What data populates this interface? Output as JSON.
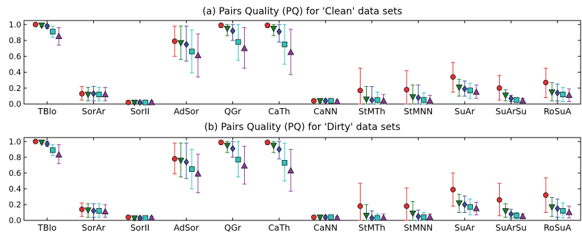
{
  "chart_data": [
    {
      "type": "scatter",
      "title": "(a)  Pairs Quality (PQ) for 'Clean' data sets",
      "xlabel": "",
      "ylabel": "",
      "ylim": [
        0,
        1.05
      ],
      "yticks": [
        "0.0",
        "0.2",
        "0.4",
        "0.6",
        "0.8",
        "1.0"
      ],
      "categories": [
        "TBlo",
        "SorAr",
        "SorII",
        "AdSor",
        "QGr",
        "CaTh",
        "CaNN",
        "StMTh",
        "StMNN",
        "SuAr",
        "SuArSu",
        "RoSuA"
      ],
      "grid": false,
      "series": [
        {
          "marker": "circle",
          "color": "#e03030",
          "values": [
            1.0,
            0.13,
            0.02,
            0.79,
            0.99,
            0.99,
            0.04,
            0.17,
            0.18,
            0.34,
            0.2,
            0.27
          ],
          "err_low": [
            1.0,
            0.05,
            0.01,
            0.6,
            0.96,
            0.96,
            0.02,
            0.0,
            0.0,
            0.15,
            0.05,
            0.08
          ],
          "err_high": [
            1.0,
            0.22,
            0.04,
            0.98,
            1.0,
            1.0,
            0.06,
            0.45,
            0.42,
            0.52,
            0.36,
            0.45
          ]
        },
        {
          "marker": "triangle-down",
          "color": "#1e7a2e",
          "values": [
            0.99,
            0.12,
            0.02,
            0.77,
            0.95,
            0.95,
            0.04,
            0.06,
            0.09,
            0.21,
            0.11,
            0.15
          ],
          "err_low": [
            0.97,
            0.04,
            0.01,
            0.56,
            0.86,
            0.86,
            0.02,
            0.0,
            0.0,
            0.1,
            0.04,
            0.04
          ],
          "err_high": [
            1.0,
            0.21,
            0.04,
            0.98,
            1.0,
            1.0,
            0.06,
            0.22,
            0.24,
            0.31,
            0.18,
            0.27
          ]
        },
        {
          "marker": "diamond",
          "color": "#3b4fa6",
          "values": [
            0.98,
            0.13,
            0.02,
            0.75,
            0.92,
            0.91,
            0.04,
            0.05,
            0.08,
            0.19,
            0.07,
            0.14
          ],
          "err_low": [
            0.95,
            0.04,
            0.01,
            0.54,
            0.8,
            0.78,
            0.02,
            0.0,
            0.0,
            0.1,
            0.03,
            0.04
          ],
          "err_high": [
            1.0,
            0.22,
            0.04,
            0.98,
            1.0,
            1.0,
            0.06,
            0.22,
            0.24,
            0.29,
            0.11,
            0.25
          ]
        },
        {
          "marker": "square",
          "color": "#2ec4c0",
          "values": [
            0.91,
            0.12,
            0.02,
            0.66,
            0.78,
            0.75,
            0.04,
            0.05,
            0.05,
            0.17,
            0.05,
            0.12
          ],
          "err_low": [
            0.84,
            0.04,
            0.01,
            0.39,
            0.55,
            0.5,
            0.02,
            0.0,
            0.0,
            0.07,
            0.02,
            0.03
          ],
          "err_high": [
            0.98,
            0.21,
            0.04,
            0.93,
            1.0,
            1.0,
            0.06,
            0.15,
            0.14,
            0.26,
            0.08,
            0.21
          ]
        },
        {
          "marker": "triangle-up",
          "color": "#8a3d96",
          "values": [
            0.85,
            0.12,
            0.02,
            0.61,
            0.7,
            0.65,
            0.03,
            0.04,
            0.04,
            0.15,
            0.04,
            0.11
          ],
          "err_low": [
            0.74,
            0.04,
            0.01,
            0.34,
            0.45,
            0.37,
            0.02,
            0.0,
            0.0,
            0.07,
            0.02,
            0.03
          ],
          "err_high": [
            0.96,
            0.21,
            0.04,
            0.88,
            0.96,
            0.94,
            0.05,
            0.12,
            0.11,
            0.24,
            0.07,
            0.19
          ]
        }
      ]
    },
    {
      "type": "scatter",
      "title": "(b)  Pairs Quality (PQ) for 'Dirty' data sets",
      "xlabel": "",
      "ylabel": "",
      "ylim": [
        0,
        1.05
      ],
      "yticks": [
        "0.0",
        "0.2",
        "0.4",
        "0.6",
        "0.8",
        "1.0"
      ],
      "categories": [
        "TBlo",
        "SorAr",
        "SorII",
        "AdSor",
        "QGr",
        "CaTh",
        "CaNN",
        "StMTh",
        "StMNN",
        "SuAr",
        "SuArSu",
        "RoSuA"
      ],
      "grid": false,
      "series": [
        {
          "marker": "circle",
          "color": "#e03030",
          "values": [
            1.0,
            0.14,
            0.04,
            0.78,
            0.99,
            0.99,
            0.04,
            0.18,
            0.18,
            0.39,
            0.26,
            0.32
          ],
          "err_low": [
            1.0,
            0.05,
            0.02,
            0.59,
            0.96,
            0.96,
            0.02,
            0.0,
            0.0,
            0.18,
            0.06,
            0.1
          ],
          "err_high": [
            1.0,
            0.22,
            0.06,
            0.98,
            1.0,
            1.0,
            0.06,
            0.47,
            0.41,
            0.6,
            0.47,
            0.54
          ]
        },
        {
          "marker": "triangle-down",
          "color": "#1e7a2e",
          "values": [
            0.99,
            0.13,
            0.03,
            0.76,
            0.95,
            0.95,
            0.04,
            0.06,
            0.09,
            0.22,
            0.12,
            0.17
          ],
          "err_low": [
            0.97,
            0.04,
            0.01,
            0.55,
            0.86,
            0.86,
            0.02,
            0.0,
            0.0,
            0.1,
            0.04,
            0.05
          ],
          "err_high": [
            1.0,
            0.21,
            0.05,
            0.98,
            1.0,
            1.0,
            0.06,
            0.2,
            0.24,
            0.33,
            0.21,
            0.29
          ]
        },
        {
          "marker": "diamond",
          "color": "#3b4fa6",
          "values": [
            0.97,
            0.12,
            0.03,
            0.74,
            0.91,
            0.9,
            0.04,
            0.03,
            0.05,
            0.2,
            0.08,
            0.15
          ],
          "err_low": [
            0.94,
            0.04,
            0.01,
            0.53,
            0.8,
            0.78,
            0.02,
            0.0,
            0.0,
            0.1,
            0.03,
            0.04
          ],
          "err_high": [
            1.0,
            0.21,
            0.05,
            0.98,
            1.0,
            1.0,
            0.06,
            0.12,
            0.13,
            0.31,
            0.14,
            0.27
          ]
        },
        {
          "marker": "square",
          "color": "#2ec4c0",
          "values": [
            0.89,
            0.12,
            0.03,
            0.65,
            0.77,
            0.73,
            0.04,
            0.03,
            0.04,
            0.17,
            0.06,
            0.12
          ],
          "err_low": [
            0.82,
            0.04,
            0.01,
            0.4,
            0.55,
            0.5,
            0.02,
            0.0,
            0.0,
            0.07,
            0.02,
            0.03
          ],
          "err_high": [
            0.96,
            0.21,
            0.05,
            0.9,
            1.0,
            0.98,
            0.06,
            0.08,
            0.1,
            0.27,
            0.1,
            0.22
          ]
        },
        {
          "marker": "triangle-up",
          "color": "#8a3d96",
          "values": [
            0.83,
            0.11,
            0.03,
            0.59,
            0.69,
            0.63,
            0.03,
            0.03,
            0.04,
            0.15,
            0.05,
            0.1
          ],
          "err_low": [
            0.72,
            0.04,
            0.01,
            0.35,
            0.46,
            0.37,
            0.02,
            0.0,
            0.0,
            0.07,
            0.02,
            0.03
          ],
          "err_high": [
            0.96,
            0.2,
            0.05,
            0.84,
            0.94,
            0.9,
            0.05,
            0.08,
            0.08,
            0.23,
            0.08,
            0.18
          ]
        }
      ]
    }
  ]
}
